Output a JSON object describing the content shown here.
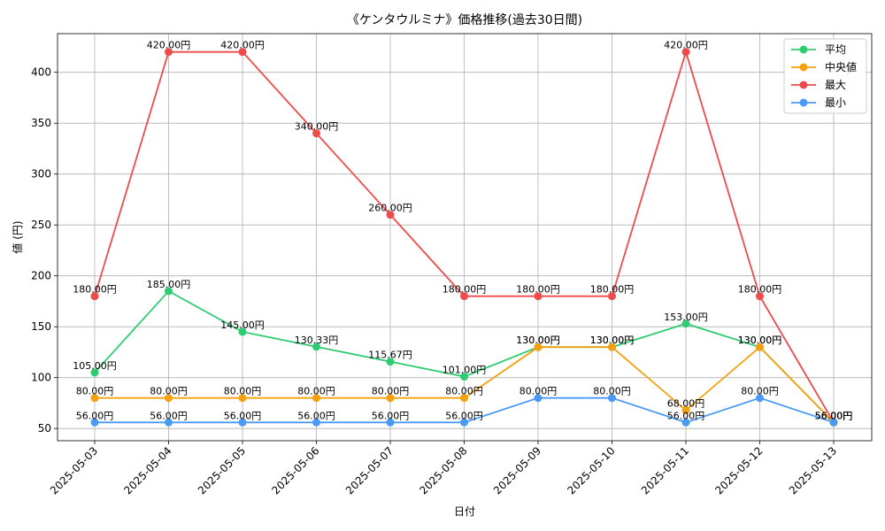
{
  "chart_data": {
    "type": "line",
    "title": "《ケンタウルミナ》価格推移(過去30日間)",
    "xlabel": "日付",
    "ylabel": "値 (円)",
    "x": [
      "2025-05-03",
      "2025-05-04",
      "2025-05-05",
      "2025-05-06",
      "2025-05-07",
      "2025-05-08",
      "2025-05-09",
      "2025-05-10",
      "2025-05-11",
      "2025-05-12",
      "2025-05-13"
    ],
    "ylim": [
      38,
      438
    ],
    "yticks": [
      50,
      100,
      150,
      200,
      250,
      300,
      350,
      400
    ],
    "grid": true,
    "legend_position": "top-right",
    "series": [
      {
        "name": "平均",
        "color": "#2ecc71",
        "values": [
          105.0,
          185.0,
          145.0,
          130.33,
          115.67,
          101.0,
          130.0,
          130.0,
          153.0,
          130.0,
          56.0
        ],
        "labels": [
          "105.00円",
          "185.00円",
          "145.00円",
          "130.33円",
          "115.67円",
          "101.00円",
          "130.00円",
          "130.00円",
          "153.00円",
          "130.00円",
          "56.00円"
        ]
      },
      {
        "name": "中央値",
        "color": "#f5a00f",
        "values": [
          80,
          80,
          80,
          80,
          80,
          80,
          130,
          130,
          68,
          130,
          56
        ],
        "labels": [
          "80.00円",
          "80.00円",
          "80.00円",
          "80.00円",
          "80.00円",
          "80.00円",
          "130.00円",
          "130.00円",
          "68.00円",
          "130.00円",
          "56.00円"
        ]
      },
      {
        "name": "最大",
        "color": "#ef4b4b",
        "values": [
          180,
          420,
          420,
          340,
          260,
          180,
          180,
          180,
          420,
          180,
          56
        ],
        "labels": [
          "180.00円",
          "420.00円",
          "420.00円",
          "340.00円",
          "260.00円",
          "180.00円",
          "180.00円",
          "180.00円",
          "420.00円",
          "180.00円",
          "56.00円"
        ]
      },
      {
        "name": "最小",
        "color": "#4a9af5",
        "values": [
          56,
          56,
          56,
          56,
          56,
          56,
          80,
          80,
          56,
          80,
          56
        ],
        "labels": [
          "56.00円",
          "56.00円",
          "56.00円",
          "56.00円",
          "56.00円",
          "56.00円",
          "80.00円",
          "80.00円",
          "56.00円",
          "80.00円",
          "56.00円"
        ]
      }
    ]
  }
}
